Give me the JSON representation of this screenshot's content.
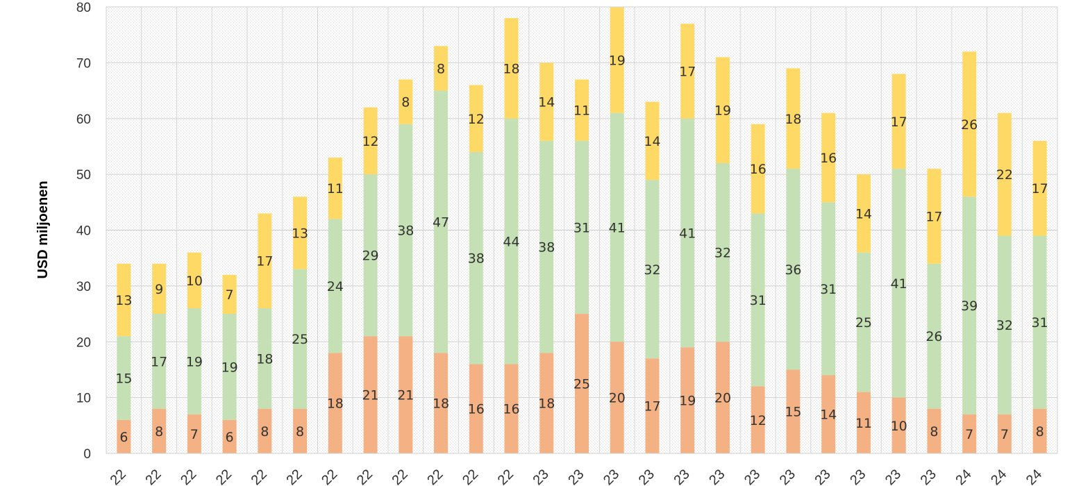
{
  "chart_data": {
    "type": "bar",
    "stacked": true,
    "ylabel": "USD miljoenen",
    "ylim": [
      0,
      80
    ],
    "yticks": [
      0,
      10,
      20,
      30,
      40,
      50,
      60,
      70,
      80
    ],
    "grid": true,
    "categories": [
      "22",
      "22",
      "22",
      "22",
      "22",
      "22",
      "22",
      "22",
      "22",
      "22",
      "22",
      "22",
      "23",
      "23",
      "23",
      "23",
      "23",
      "23",
      "23",
      "23",
      "23",
      "23",
      "23",
      "23",
      "24",
      "24",
      "24"
    ],
    "series": [
      {
        "color": "#f4b183",
        "values": [
          6,
          8,
          7,
          6,
          8,
          8,
          18,
          21,
          21,
          18,
          16,
          16,
          18,
          25,
          20,
          17,
          19,
          20,
          12,
          15,
          14,
          11,
          10,
          8,
          7,
          7,
          8
        ]
      },
      {
        "color": "#c5e0b4",
        "values": [
          15,
          17,
          19,
          19,
          18,
          25,
          24,
          29,
          38,
          47,
          38,
          44,
          38,
          31,
          41,
          32,
          41,
          32,
          31,
          36,
          31,
          25,
          41,
          26,
          39,
          32,
          31
        ]
      },
      {
        "color": "#ffd966",
        "values": [
          13,
          9,
          10,
          7,
          17,
          13,
          11,
          12,
          8,
          8,
          12,
          18,
          14,
          11,
          19,
          14,
          17,
          19,
          16,
          18,
          16,
          14,
          17,
          17,
          26,
          22,
          17
        ]
      }
    ]
  }
}
